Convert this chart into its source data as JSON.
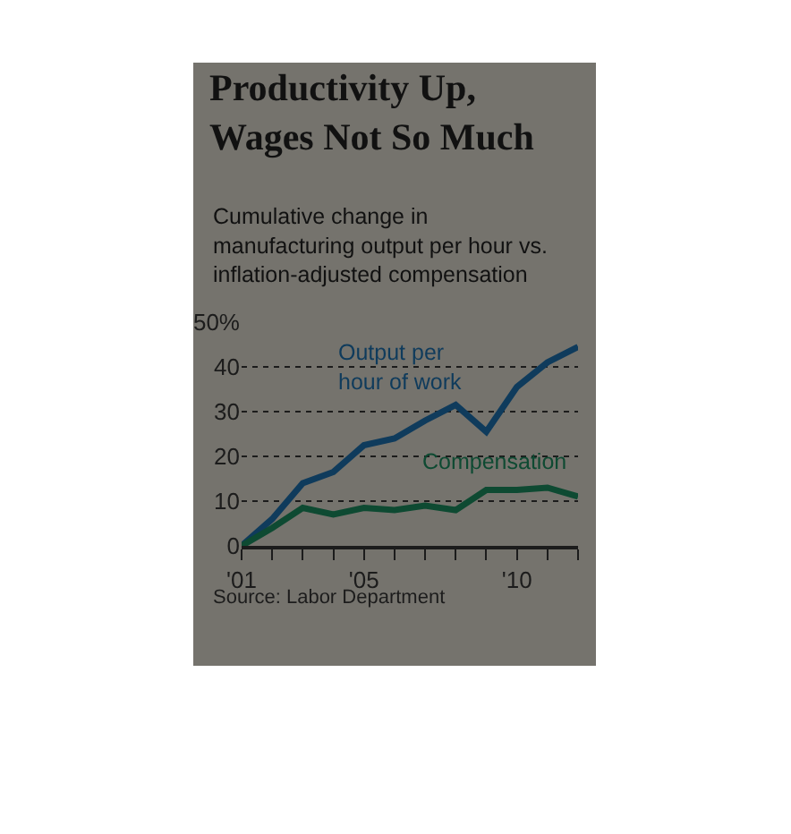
{
  "chart_data": {
    "type": "line",
    "title": "Productivity Up, Wages Not So Much",
    "subtitle": "Cumulative change in manufacturing output per hour vs. inflation-adjusted compensation",
    "x": [
      2001,
      2002,
      2003,
      2004,
      2005,
      2006,
      2007,
      2008,
      2009,
      2010,
      2011,
      2012
    ],
    "series": [
      {
        "name": "Output per hour of work",
        "color": "#0f3b5c",
        "values": [
          0,
          6,
          14,
          16.5,
          22.5,
          24,
          28,
          31.5,
          25.5,
          35.5,
          41,
          44.5
        ]
      },
      {
        "name": "Compensation",
        "color": "#0e4a32",
        "values": [
          0,
          4,
          8.5,
          7,
          8.5,
          8,
          9,
          8,
          12.5,
          12.5,
          13,
          11
        ]
      }
    ],
    "xlim": [
      2001,
      2012
    ],
    "xticks": [
      {
        "value": 2001,
        "label": "'01"
      },
      {
        "value": 2002,
        "label": null
      },
      {
        "value": 2003,
        "label": null
      },
      {
        "value": 2004,
        "label": null
      },
      {
        "value": 2005,
        "label": "'05"
      },
      {
        "value": 2006,
        "label": null
      },
      {
        "value": 2007,
        "label": null
      },
      {
        "value": 2008,
        "label": null
      },
      {
        "value": 2009,
        "label": null
      },
      {
        "value": 2010,
        "label": "'10"
      },
      {
        "value": 2011,
        "label": null
      },
      {
        "value": 2012,
        "label": null
      }
    ],
    "ylim": [
      0,
      50
    ],
    "yticks": [
      0,
      10,
      20,
      30,
      40,
      {
        "value": 50,
        "label": "50%"
      }
    ],
    "grid": "y",
    "legend": false,
    "marker": "none",
    "line_style": "solid",
    "annotations": [
      "Source: Labor Department"
    ]
  }
}
